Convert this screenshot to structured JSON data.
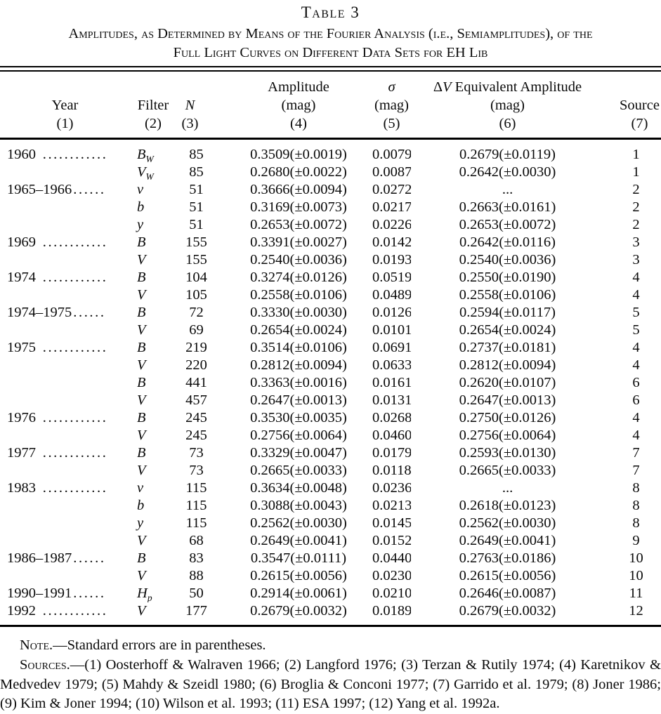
{
  "caption": {
    "label": "Table 3",
    "title_line1": "Amplitudes, as Determined by Means of the Fourier Analysis (i.e., Semiamplitudes), of the",
    "title_line2": "Full Light Curves on Different Data Sets for EH Lib"
  },
  "header": {
    "col_year": {
      "l2": "Year",
      "l3": "(1)"
    },
    "col_filter": {
      "l2": "Filter",
      "l3": "(2)"
    },
    "col_n": {
      "l2": "N",
      "l3": "(3)"
    },
    "col_amplitude": {
      "l1": "Amplitude",
      "l2": "(mag)",
      "l3": "(4)"
    },
    "col_sigma": {
      "l1": "σ",
      "l2": "(mag)",
      "l3": "(5)"
    },
    "col_dv": {
      "l1_delta": "Δ",
      "l1_v": "V",
      "l1_rest": " Equivalent Amplitude",
      "l2": "(mag)",
      "l3": "(6)"
    },
    "col_source": {
      "l2": "Source",
      "l3": "(7)"
    }
  },
  "rows": [
    {
      "year": "1960",
      "dots": " ............",
      "filter": "B",
      "filter_sub": "W",
      "n": "85",
      "amplitude": "0.3509(±0.0019)",
      "sigma": "0.0079",
      "dv": "0.2679(±0.0119)",
      "source": "1"
    },
    {
      "year": "",
      "dots": "",
      "filter": "V",
      "filter_sub": "W",
      "n": "85",
      "amplitude": "0.2680(±0.0022)",
      "sigma": "0.0087",
      "dv": "0.2642(±0.0030)",
      "source": "1"
    },
    {
      "year": "1965–1966",
      "dots": "......",
      "filter": "v",
      "filter_sub": "",
      "n": "51",
      "amplitude": "0.3666(±0.0094)",
      "sigma": "0.0272",
      "dv": "...",
      "source": "2"
    },
    {
      "year": "",
      "dots": "",
      "filter": "b",
      "filter_sub": "",
      "n": "51",
      "amplitude": "0.3169(±0.0073)",
      "sigma": "0.0217",
      "dv": "0.2663(±0.0161)",
      "source": "2"
    },
    {
      "year": "",
      "dots": "",
      "filter": "y",
      "filter_sub": "",
      "n": "51",
      "amplitude": "0.2653(±0.0072)",
      "sigma": "0.0226",
      "dv": "0.2653(±0.0072)",
      "source": "2"
    },
    {
      "year": "1969",
      "dots": " ............",
      "filter": "B",
      "filter_sub": "",
      "n": "155",
      "amplitude": "0.3391(±0.0027)",
      "sigma": "0.0142",
      "dv": "0.2642(±0.0116)",
      "source": "3"
    },
    {
      "year": "",
      "dots": "",
      "filter": "V",
      "filter_sub": "",
      "n": "155",
      "amplitude": "0.2540(±0.0036)",
      "sigma": "0.0193",
      "dv": "0.2540(±0.0036)",
      "source": "3"
    },
    {
      "year": "1974",
      "dots": " ............",
      "filter": "B",
      "filter_sub": "",
      "n": "104",
      "amplitude": "0.3274(±0.0126)",
      "sigma": "0.0519",
      "dv": "0.2550(±0.0190)",
      "source": "4"
    },
    {
      "year": "",
      "dots": "",
      "filter": "V",
      "filter_sub": "",
      "n": "105",
      "amplitude": "0.2558(±0.0106)",
      "sigma": "0.0489",
      "dv": "0.2558(±0.0106)",
      "source": "4"
    },
    {
      "year": "1974–1975",
      "dots": "......",
      "filter": "B",
      "filter_sub": "",
      "n": "72",
      "amplitude": "0.3330(±0.0030)",
      "sigma": "0.0126",
      "dv": "0.2594(±0.0117)",
      "source": "5"
    },
    {
      "year": "",
      "dots": "",
      "filter": "V",
      "filter_sub": "",
      "n": "69",
      "amplitude": "0.2654(±0.0024)",
      "sigma": "0.0101",
      "dv": "0.2654(±0.0024)",
      "source": "5"
    },
    {
      "year": "1975",
      "dots": " ............",
      "filter": "B",
      "filter_sub": "",
      "n": "219",
      "amplitude": "0.3514(±0.0106)",
      "sigma": "0.0691",
      "dv": "0.2737(±0.0181)",
      "source": "4"
    },
    {
      "year": "",
      "dots": "",
      "filter": "V",
      "filter_sub": "",
      "n": "220",
      "amplitude": "0.2812(±0.0094)",
      "sigma": "0.0633",
      "dv": "0.2812(±0.0094)",
      "source": "4"
    },
    {
      "year": "",
      "dots": "",
      "filter": "B",
      "filter_sub": "",
      "n": "441",
      "amplitude": "0.3363(±0.0016)",
      "sigma": "0.0161",
      "dv": "0.2620(±0.0107)",
      "source": "6"
    },
    {
      "year": "",
      "dots": "",
      "filter": "V",
      "filter_sub": "",
      "n": "457",
      "amplitude": "0.2647(±0.0013)",
      "sigma": "0.0131",
      "dv": "0.2647(±0.0013)",
      "source": "6"
    },
    {
      "year": "1976",
      "dots": " ............",
      "filter": "B",
      "filter_sub": "",
      "n": "245",
      "amplitude": "0.3530(±0.0035)",
      "sigma": "0.0268",
      "dv": "0.2750(±0.0126)",
      "source": "4"
    },
    {
      "year": "",
      "dots": "",
      "filter": "V",
      "filter_sub": "",
      "n": "245",
      "amplitude": "0.2756(±0.0064)",
      "sigma": "0.0460",
      "dv": "0.2756(±0.0064)",
      "source": "4"
    },
    {
      "year": "1977",
      "dots": " ............",
      "filter": "B",
      "filter_sub": "",
      "n": "73",
      "amplitude": "0.3329(±0.0047)",
      "sigma": "0.0179",
      "dv": "0.2593(±0.0130)",
      "source": "7"
    },
    {
      "year": "",
      "dots": "",
      "filter": "V",
      "filter_sub": "",
      "n": "73",
      "amplitude": "0.2665(±0.0033)",
      "sigma": "0.0118",
      "dv": "0.2665(±0.0033)",
      "source": "7"
    },
    {
      "year": "1983",
      "dots": " ............",
      "filter": "v",
      "filter_sub": "",
      "n": "115",
      "amplitude": "0.3634(±0.0048)",
      "sigma": "0.0236",
      "dv": "...",
      "source": "8"
    },
    {
      "year": "",
      "dots": "",
      "filter": "b",
      "filter_sub": "",
      "n": "115",
      "amplitude": "0.3088(±0.0043)",
      "sigma": "0.0213",
      "dv": "0.2618(±0.0123)",
      "source": "8"
    },
    {
      "year": "",
      "dots": "",
      "filter": "y",
      "filter_sub": "",
      "n": "115",
      "amplitude": "0.2562(±0.0030)",
      "sigma": "0.0145",
      "dv": "0.2562(±0.0030)",
      "source": "8"
    },
    {
      "year": "",
      "dots": "",
      "filter": "V",
      "filter_sub": "",
      "n": "68",
      "amplitude": "0.2649(±0.0041)",
      "sigma": "0.0152",
      "dv": "0.2649(±0.0041)",
      "source": "9"
    },
    {
      "year": "1986–1987",
      "dots": "......",
      "filter": "B",
      "filter_sub": "",
      "n": "83",
      "amplitude": "0.3547(±0.0111)",
      "sigma": "0.0440",
      "dv": "0.2763(±0.0186)",
      "source": "10"
    },
    {
      "year": "",
      "dots": "",
      "filter": "V",
      "filter_sub": "",
      "n": "88",
      "amplitude": "0.2615(±0.0056)",
      "sigma": "0.0230",
      "dv": "0.2615(±0.0056)",
      "source": "10"
    },
    {
      "year": "1990–1991",
      "dots": "......",
      "filter": "H",
      "filter_sub": "p",
      "n": "50",
      "amplitude": "0.2914(±0.0061)",
      "sigma": "0.0210",
      "dv": "0.2646(±0.0087)",
      "source": "11"
    },
    {
      "year": "1992",
      "dots": " ............",
      "filter": "V",
      "filter_sub": "",
      "n": "177",
      "amplitude": "0.2679(±0.0032)",
      "sigma": "0.0189",
      "dv": "0.2679(±0.0032)",
      "source": "12"
    }
  ],
  "notes": {
    "note_label": "Note",
    "note_text": ".—Standard errors are in parentheses.",
    "sources_label": "Sources",
    "sources_text": ".—(1) Oosterhoff & Walraven 1966; (2) Langford 1976; (3) Terzan & Rutily 1974; (4) Karetnikov & Medvedev 1979; (5) Mahdy & Szeidl 1980; (6) Broglia & Conconi 1977; (7) Garrido et al. 1979; (8) Joner 1986; (9) Kim & Joner 1994; (10) Wilson et al. 1993; (11) ESA 1997; (12) Yang et al. 1992a."
  }
}
